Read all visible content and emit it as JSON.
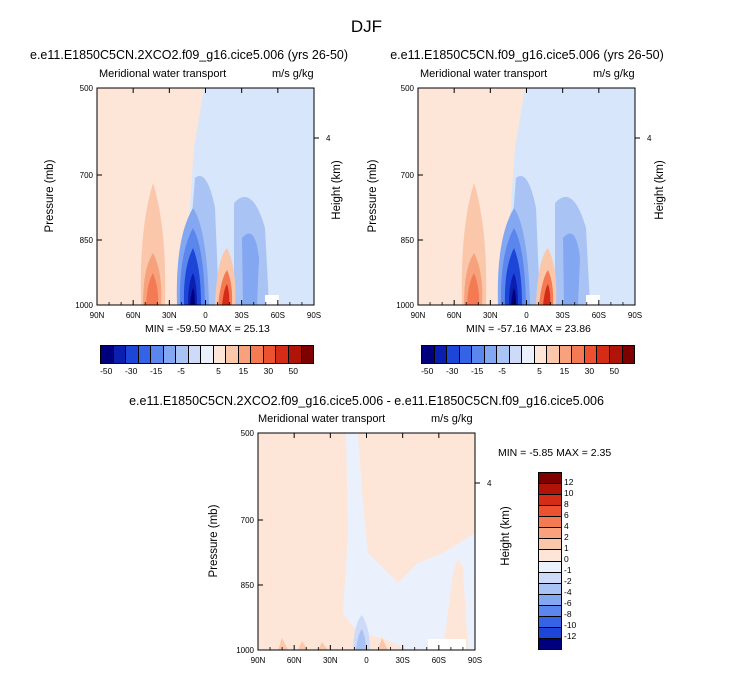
{
  "figure": {
    "main_title": "DJF",
    "panels": [
      {
        "id": "p1",
        "title": "e.e11.E1850C5CN.2XCO2.f09_g16.cice5.006 (yrs 26-50)",
        "left_subtitle": "Meridional water transport",
        "right_subtitle": "m/s g/kg",
        "min_max": "MIN = -59.50  MAX =  25.13"
      },
      {
        "id": "p2",
        "title": "e.e11.E1850C5CN.f09_g16.cice5.006 (yrs 26-50)",
        "left_subtitle": "Meridional water transport",
        "right_subtitle": "m/s g/kg",
        "min_max": "MIN = -57.16  MAX =  23.86"
      },
      {
        "id": "p3",
        "title": "e.e11.E1850C5CN.2XCO2.f09_g16.cice5.006 - e.e11.E1850C5CN.f09_g16.cice5.006",
        "left_subtitle": "Meridional water transport",
        "right_subtitle": "m/s g/kg",
        "min_max": "MIN =  -5.85  MAX =   2.35"
      }
    ],
    "y_label": "Pressure (mb)",
    "y2_label": "Height (km)",
    "y2_tick": "4",
    "y_ticks": [
      "500",
      "700",
      "850",
      "1000"
    ],
    "x_ticks": [
      "90N",
      "60N",
      "30N",
      "0",
      "30S",
      "60S",
      "90S"
    ],
    "colorbar_top": {
      "labels": [
        "-50",
        "-30",
        "-15",
        "-5",
        "5",
        "15",
        "30",
        "50"
      ],
      "colors": [
        "#00007f",
        "#0a1fb0",
        "#1d45d8",
        "#3563e6",
        "#5a86ee",
        "#84a7f2",
        "#aac3f5",
        "#cddbf9",
        "#eaf1fd",
        "#fde6d8",
        "#fbc7ab",
        "#f8a17d",
        "#f47a54",
        "#ec5130",
        "#d42c17",
        "#b01408",
        "#7f0000"
      ]
    },
    "colorbar_bottom": {
      "labels": [
        "12",
        "10",
        "8",
        "6",
        "4",
        "2",
        "1",
        "0",
        "-1",
        "-2",
        "-4",
        "-6",
        "-8",
        "-10",
        "-12"
      ],
      "colors": [
        "#7f0000",
        "#b01408",
        "#d42c17",
        "#ec5130",
        "#f47a54",
        "#f8a17d",
        "#fbc7ab",
        "#fde6d8",
        "#eaf1fd",
        "#cddbf9",
        "#aac3f5",
        "#84a7f2",
        "#5a86ee",
        "#3563e6",
        "#1d45d8",
        "#00007f"
      ]
    }
  },
  "chart_data": [
    {
      "type": "heatmap",
      "title": "e.e11.E1850C5CN.2XCO2.f09_g16.cice5.006 (yrs 26-50)",
      "xlabel": "",
      "ylabel": "Pressure (mb)",
      "y2label": "Height (km)",
      "x_categories": [
        "90N",
        "60N",
        "30N",
        "0",
        "30S",
        "60S",
        "90S"
      ],
      "y_ticks": [
        500,
        700,
        850,
        1000
      ],
      "min": -59.5,
      "max": 25.13,
      "units": "m/s g/kg"
    },
    {
      "type": "heatmap",
      "title": "e.e11.E1850C5CN.f09_g16.cice5.006 (yrs 26-50)",
      "xlabel": "",
      "ylabel": "Pressure (mb)",
      "y2label": "Height (km)",
      "x_categories": [
        "90N",
        "60N",
        "30N",
        "0",
        "30S",
        "60S",
        "90S"
      ],
      "y_ticks": [
        500,
        700,
        850,
        1000
      ],
      "min": -57.16,
      "max": 23.86,
      "units": "m/s g/kg"
    },
    {
      "type": "heatmap",
      "title": "e.e11.E1850C5CN.2XCO2.f09_g16.cice5.006 - e.e11.E1850C5CN.f09_g16.cice5.006",
      "xlabel": "",
      "ylabel": "Pressure (mb)",
      "y2label": "Height (km)",
      "x_categories": [
        "90N",
        "60N",
        "30N",
        "0",
        "30S",
        "60S",
        "90S"
      ],
      "y_ticks": [
        500,
        700,
        850,
        1000
      ],
      "min": -5.85,
      "max": 2.35,
      "units": "m/s g/kg"
    }
  ]
}
